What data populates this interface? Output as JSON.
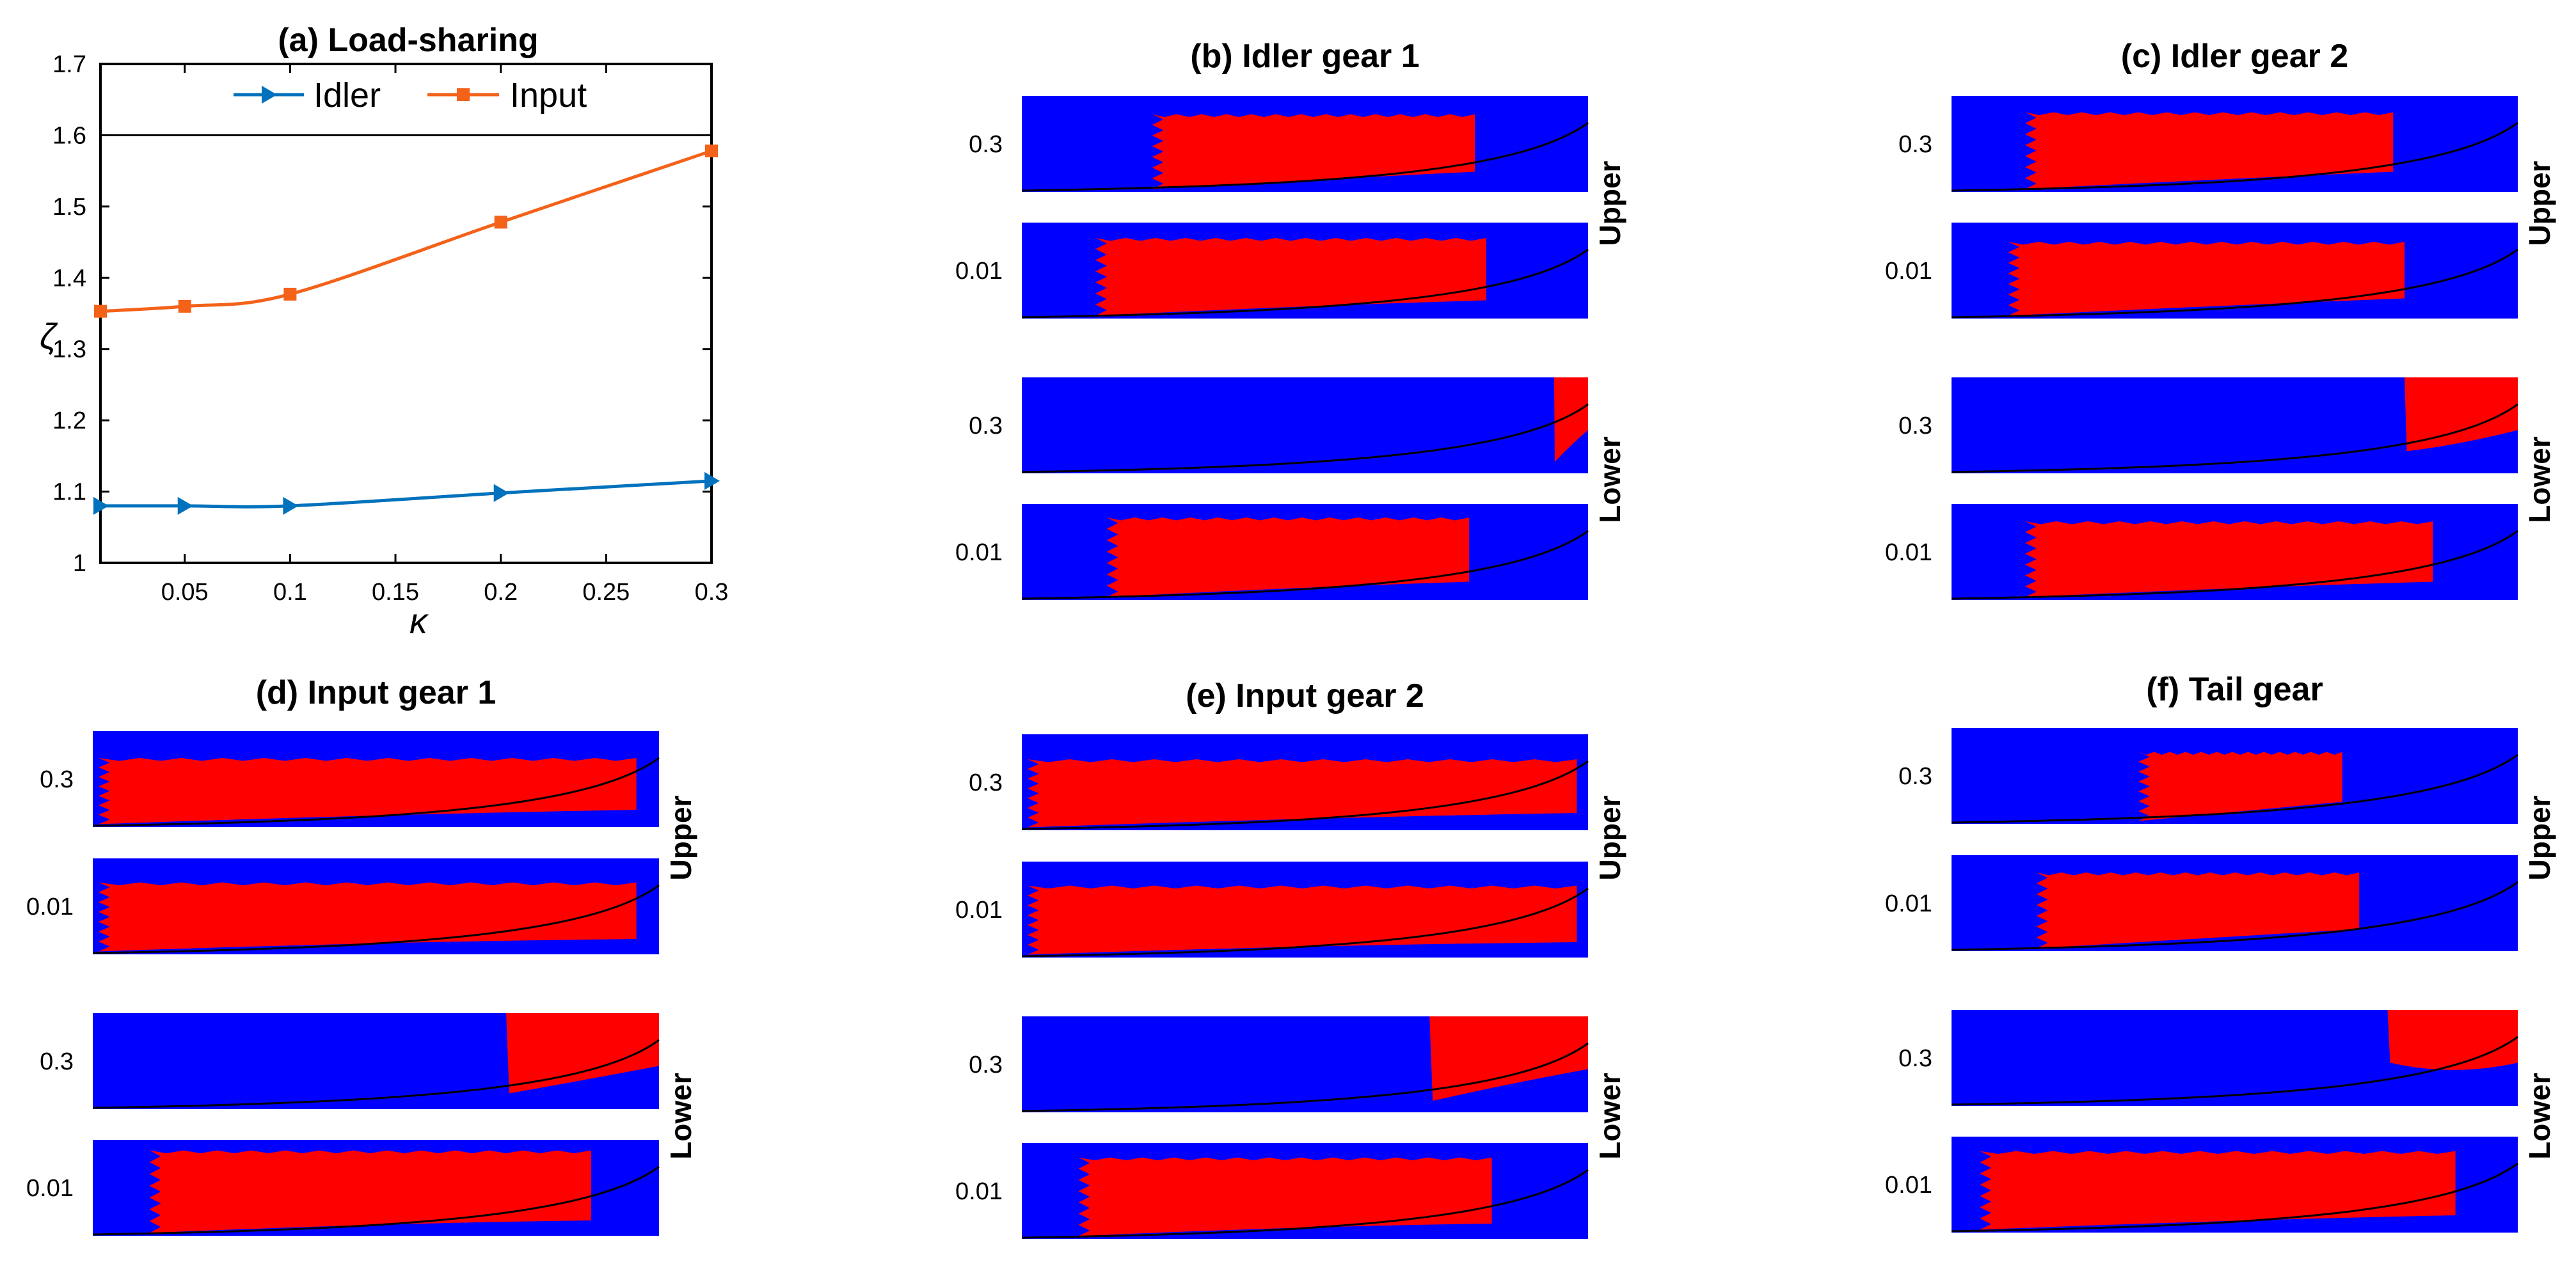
{
  "chart_data": [
    {
      "type": "line",
      "title": "(a) Load-sharing",
      "xlabel": "κ",
      "ylabel": "ζ",
      "xlim": [
        0.01,
        0.3
      ],
      "ylim": [
        1,
        1.7
      ],
      "xticks": [
        {
          "value": 0.05,
          "label": "0.05"
        },
        {
          "value": 0.1,
          "label": "0.1"
        },
        {
          "value": 0.15,
          "label": "0.15"
        },
        {
          "value": 0.2,
          "label": "0.2"
        },
        {
          "value": 0.25,
          "label": "0.25"
        },
        {
          "value": 0.3,
          "label": "0.3"
        }
      ],
      "yticks": [
        {
          "value": 1,
          "label": "1"
        },
        {
          "value": 1.1,
          "label": "1.1"
        },
        {
          "value": 1.2,
          "label": "1.2"
        },
        {
          "value": 1.3,
          "label": "1.3"
        },
        {
          "value": 1.4,
          "label": "1.4"
        },
        {
          "value": 1.5,
          "label": "1.5"
        },
        {
          "value": 1.6,
          "label": "1.6"
        },
        {
          "value": 1.7,
          "label": "1.7"
        }
      ],
      "reference_line": 1.6,
      "legend_position": "top",
      "series": [
        {
          "name": "Idler",
          "color": "#0072BD",
          "marker": "triangle-right",
          "x": [
            0.01,
            0.05,
            0.1,
            0.2,
            0.3
          ],
          "y": [
            1.08,
            1.08,
            1.08,
            1.098,
            1.115
          ]
        },
        {
          "name": "Input",
          "color": "#F4621A",
          "marker": "square",
          "x": [
            0.01,
            0.05,
            0.1,
            0.2,
            0.3
          ],
          "y": [
            1.353,
            1.36,
            1.377,
            1.478,
            1.578
          ]
        }
      ]
    },
    {
      "type": "heatmap",
      "colors": {
        "background": "#0000FF",
        "region": "#FF0000",
        "curve": "#000000"
      },
      "side_labels": {
        "upper": "Upper",
        "lower": "Lower"
      },
      "row_labels": [
        "0.3",
        "0.01",
        "0.3",
        "0.01"
      ],
      "panels": [
        {
          "title": "(b) Idler gear 1",
          "regions": [
            [
              0.23,
              0.8,
              0.19,
              0.08
            ],
            [
              0.13,
              0.82,
              0.16,
              0.06
            ],
            [
              0.94,
              0.99,
              0.01,
              0.4
            ],
            [
              0.15,
              0.79,
              0.14,
              0.06
            ]
          ]
        },
        {
          "title": "(c) Idler gear 2",
          "regions": [
            [
              0.13,
              0.78,
              0.17,
              0.08
            ],
            [
              0.1,
              0.8,
              0.2,
              0.08
            ],
            [
              0.8,
              0.99,
              0.01,
              0.35
            ],
            [
              0.13,
              0.85,
              0.18,
              0.06
            ]
          ]
        },
        {
          "title": "(d) Input gear 1",
          "regions": [
            [
              0.01,
              0.96,
              0.28,
              0.05
            ],
            [
              0.01,
              0.96,
              0.25,
              0.03
            ],
            [
              0.73,
              0.99,
              0.01,
              0.38
            ],
            [
              0.1,
              0.88,
              0.11,
              0.03
            ]
          ]
        },
        {
          "title": "(e) Input gear 2",
          "regions": [
            [
              0.01,
              0.98,
              0.26,
              0.05
            ],
            [
              0.01,
              0.98,
              0.25,
              0.03
            ],
            [
              0.72,
              0.99,
              0.01,
              0.4
            ],
            [
              0.1,
              0.83,
              0.15,
              0.03
            ]
          ]
        },
        {
          "title": "(f) Tail gear",
          "regions": [
            [
              0.33,
              0.69,
              0.25,
              0.1
            ],
            [
              0.15,
              0.72,
              0.18,
              0.1
            ],
            [
              0.77,
              0.99,
              0.01,
              0.25
            ],
            [
              0.05,
              0.89,
              0.15,
              0.05
            ]
          ]
        }
      ]
    }
  ]
}
